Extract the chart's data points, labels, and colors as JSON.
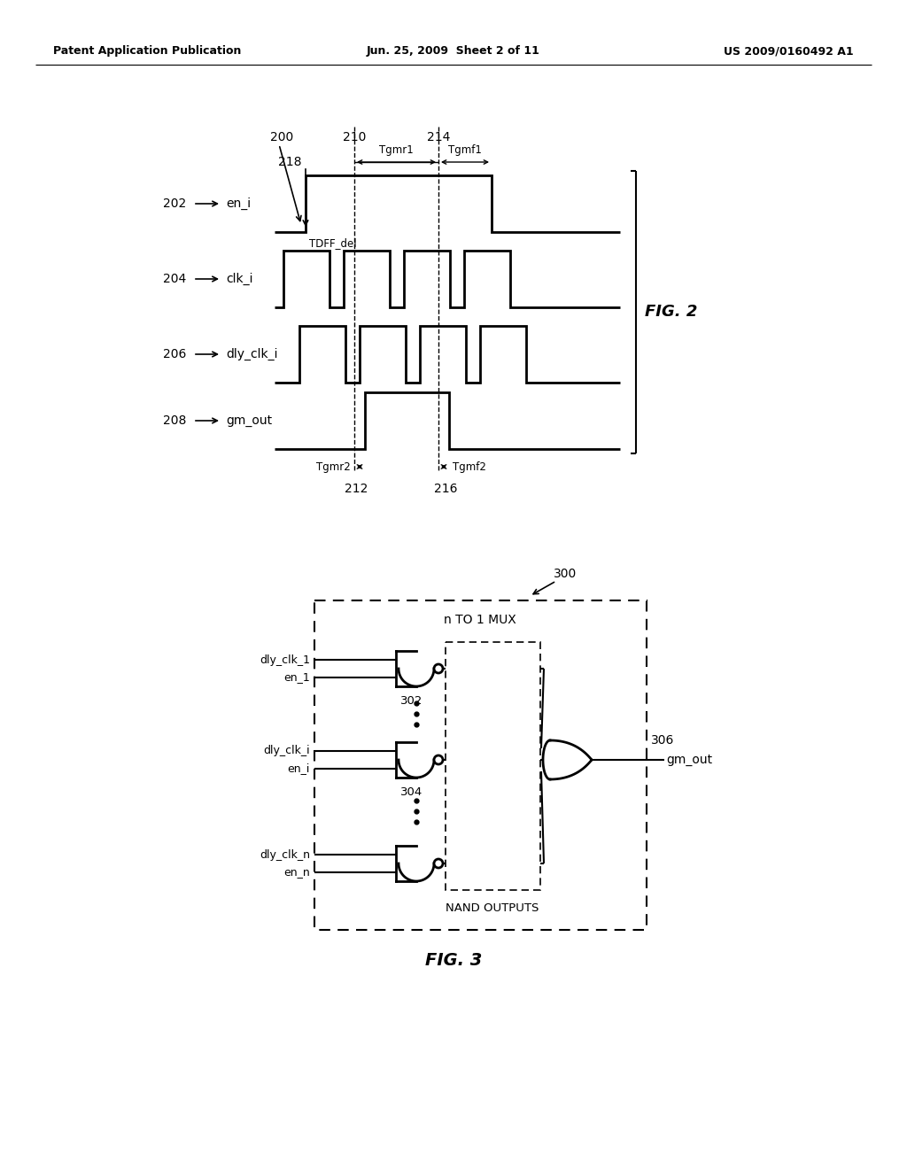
{
  "title_left": "Patent Application Publication",
  "title_center": "Jun. 25, 2009  Sheet 2 of 11",
  "title_right": "US 2009/0160492 A1",
  "fig2_label": "FIG. 2",
  "fig3_label": "FIG. 3",
  "background_color": "#ffffff",
  "line_color": "#000000",
  "signal_labels": [
    "en_i",
    "clk_i",
    "dly_clk_i",
    "gm_out"
  ],
  "signal_numbers": [
    "202",
    "204",
    "206",
    "208"
  ],
  "box_label": "n TO 1 MUX",
  "nand_outputs_label": "NAND OUTPUTS",
  "signal_inputs_top": [
    "dly_clk_1",
    "en_1"
  ],
  "signal_inputs_mid": [
    "dly_clk_i",
    "en_i"
  ],
  "signal_inputs_bot": [
    "dly_clk_n",
    "en_n"
  ],
  "output_label": "gm_out",
  "ref300": "300",
  "nand_label1": "302",
  "nand_label2": "304",
  "or_label": "306",
  "ref200": "200",
  "ref210": "210",
  "ref212": "212",
  "ref214": "214",
  "ref216": "216",
  "ref218": "218",
  "tgmr1": "Tgmr1",
  "tgmf1": "Tgmf1",
  "tgmr2": "Tgmr2",
  "tgmf2": "Tgmf2",
  "tdff_del": "TDFF_del"
}
